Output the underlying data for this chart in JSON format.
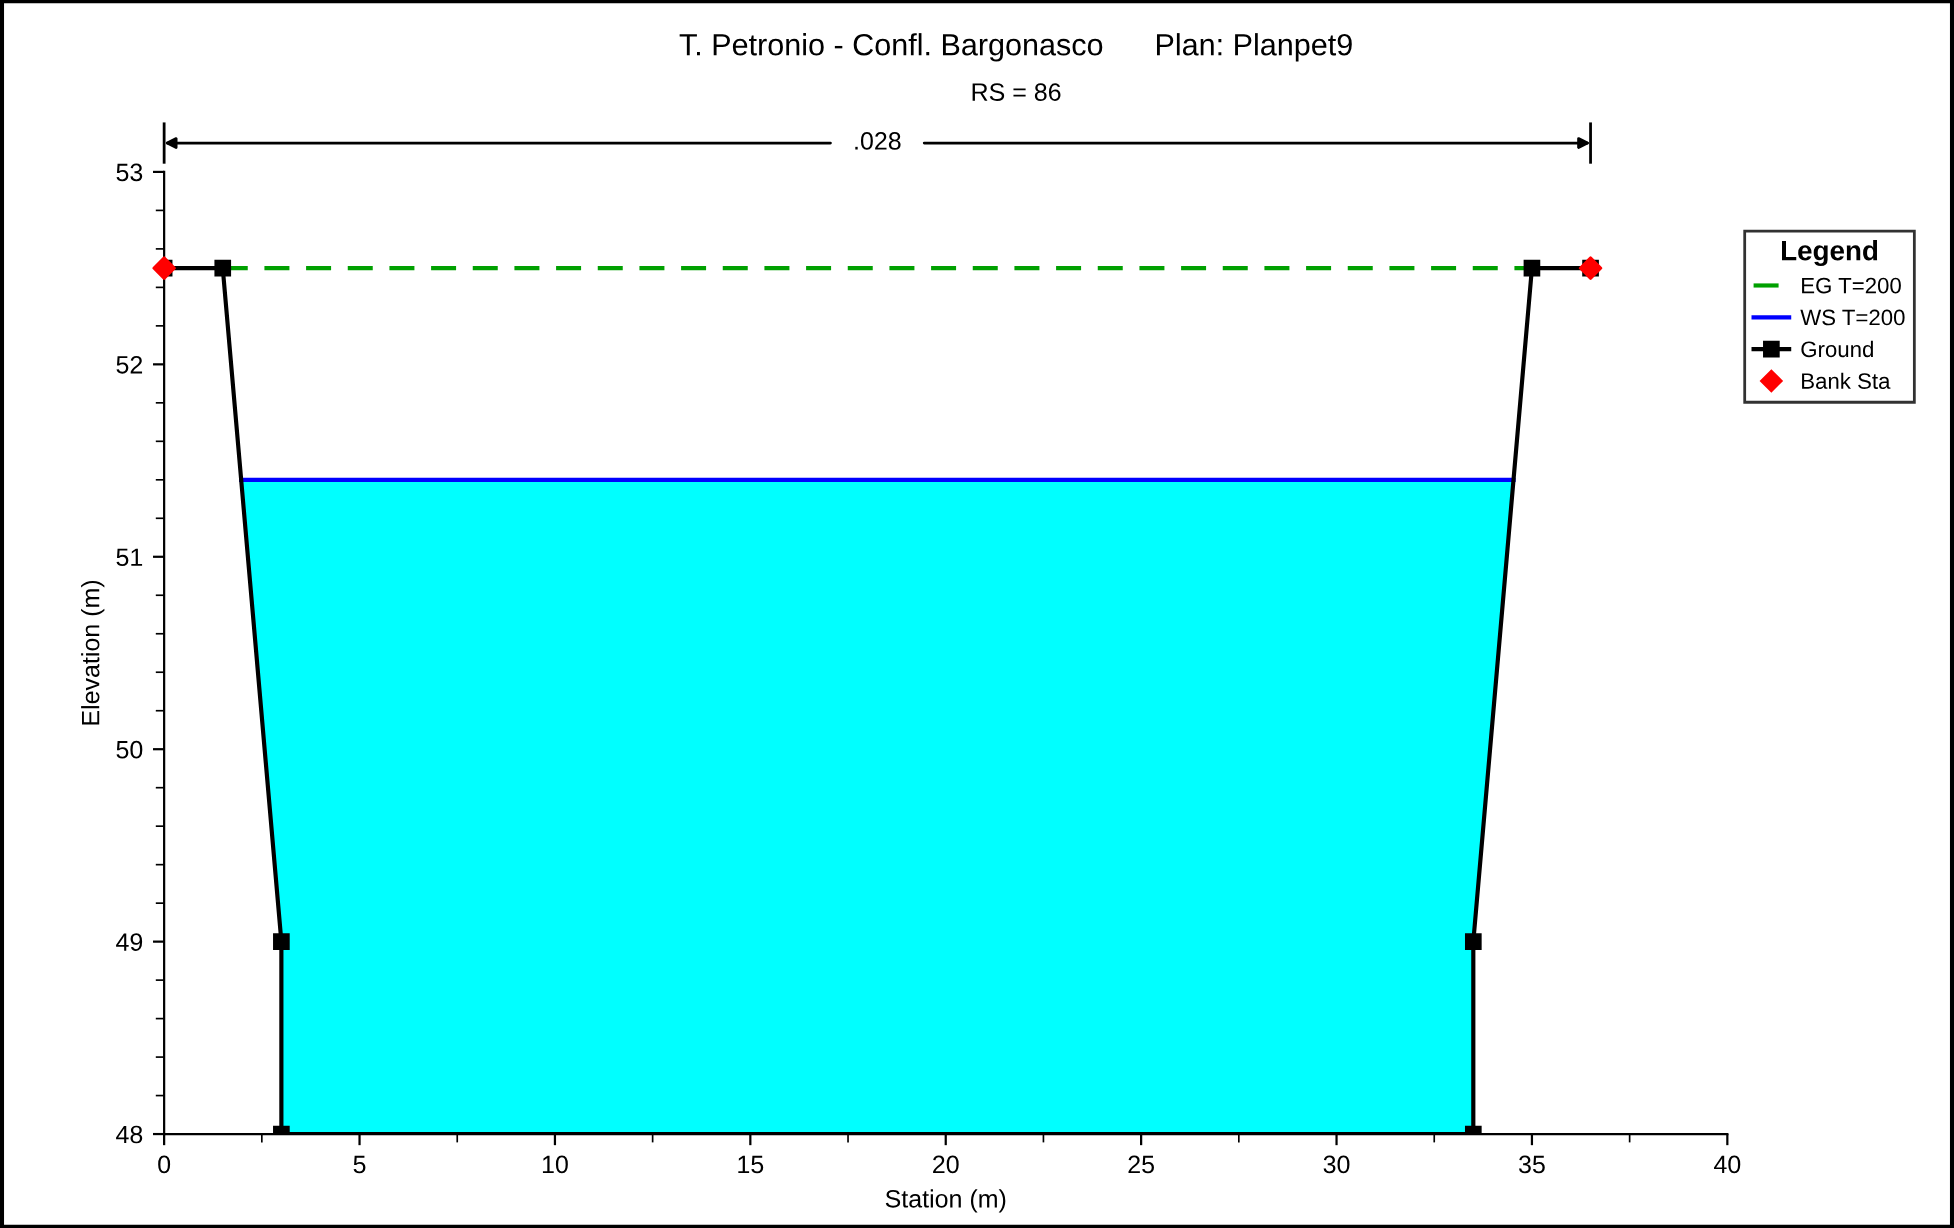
{
  "chart_data": {
    "type": "line",
    "title": "T. Petronio - Confl. Bargonasco      Plan: Planpet9",
    "subtitle": "RS = 86",
    "xlabel": "Station (m)",
    "ylabel": "Elevation (m)",
    "legend_title": "Legend",
    "annotations": [
      ".028"
    ],
    "xlim": [
      0,
      40
    ],
    "xticks": [
      0,
      5,
      10,
      15,
      20,
      25,
      30,
      35,
      40
    ],
    "ylim": [
      48,
      53
    ],
    "yticks": [
      48,
      49,
      50,
      51,
      52,
      53
    ],
    "grid": false,
    "legend": "right",
    "bands": [
      {
        "axis": "y",
        "from": 48,
        "to": 51.4,
        "color": "#00ffff"
      }
    ],
    "series": [
      {
        "name": "EG T=200",
        "type": "line",
        "color": "#00a000",
        "line_style": "dashed",
        "marker": "none",
        "x": [
          1.5,
          35
        ],
        "values": [
          52.5,
          52.5
        ]
      },
      {
        "name": "WS T=200",
        "type": "line",
        "color": "#0000ff",
        "line_style": "solid",
        "marker": "none",
        "x": [
          1.97,
          34.53
        ],
        "values": [
          51.4,
          51.4
        ]
      },
      {
        "name": "Ground",
        "color": "#000000",
        "line_style": "solid",
        "marker": "square",
        "x": [
          0,
          1.5,
          3,
          3,
          33.5,
          33.5,
          35,
          36.5
        ],
        "values": [
          52.5,
          52.5,
          49,
          48,
          48,
          49,
          52.5,
          52.5
        ]
      },
      {
        "name": "Bank Sta",
        "type": "scatter",
        "color": "#ff0000",
        "marker": "diamond",
        "x": [
          0,
          36.5
        ],
        "values": [
          52.5,
          52.5
        ]
      }
    ]
  }
}
